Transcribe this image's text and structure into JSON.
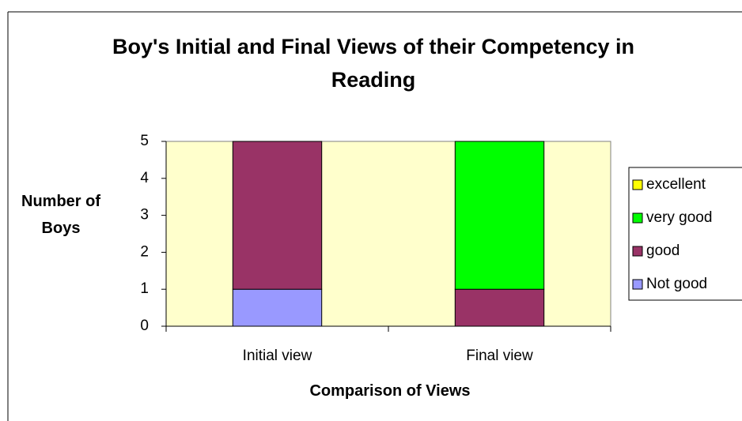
{
  "chart_data": {
    "type": "stacked_bar",
    "title": "Boy's Initial and Final Views of their Competency in Reading",
    "x_label": "Comparison of Views",
    "y_label": "Number of Boys",
    "categories": [
      "Initial view",
      "Final view"
    ],
    "series": [
      {
        "name": "Not good",
        "color": "#9999ff",
        "values": [
          1,
          0
        ]
      },
      {
        "name": "good",
        "color": "#993366",
        "values": [
          4,
          1
        ]
      },
      {
        "name": "very good",
        "color": "#00ff00",
        "values": [
          0,
          4
        ]
      },
      {
        "name": "excellent",
        "color": "#ffff00",
        "values": [
          0,
          0
        ]
      }
    ],
    "ylim": [
      0,
      5
    ],
    "yticks": [
      0,
      1,
      2,
      3,
      4,
      5
    ],
    "plot_background": "#ffffcc",
    "legend": "right"
  }
}
